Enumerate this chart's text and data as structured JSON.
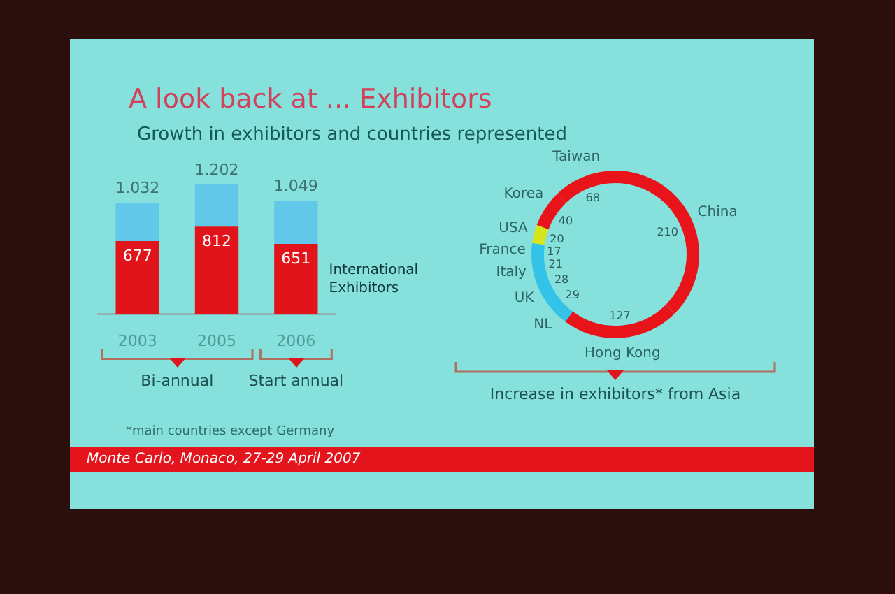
{
  "chart_data": [
    {
      "type": "bar",
      "title": "A look back at ... Exhibitors",
      "subtitle": "Growth in exhibitors and countries represented",
      "categories": [
        "2003",
        "2005",
        "2006"
      ],
      "stacked": true,
      "tick_labels": "x",
      "series": [
        {
          "name": "International Exhibitors",
          "color": "#e0141a",
          "values": [
            677,
            812,
            651
          ],
          "value_labels": [
            "677",
            "812",
            "651"
          ]
        },
        {
          "color": "#62c8ea",
          "values": [
            355,
            390,
            398
          ]
        }
      ],
      "totals": [
        "1.032",
        "1.202",
        "1.049"
      ],
      "annotations": [
        "Bi-annual",
        "Start annual",
        "*main countries except Germany",
        "Monte Carlo, Monaco, 27-29 April 2007"
      ]
    },
    {
      "type": "donut",
      "categories": [
        "China",
        "Hong Kong",
        "NL",
        "UK",
        "Italy",
        "France",
        "USA",
        "Korea",
        "Taiwan"
      ],
      "values": [
        210,
        127,
        29,
        28,
        21,
        17,
        20,
        40,
        68
      ],
      "colors": [
        "#e8141a",
        "#e8141a",
        "#33c3e8",
        "#33c3e8",
        "#33c3e8",
        "#33c3e8",
        "#d6e61a",
        "#e8141a",
        "#e8141a"
      ],
      "data_labels": true,
      "annotations": [
        "Increase in exhibitors* from Asia"
      ]
    }
  ]
}
